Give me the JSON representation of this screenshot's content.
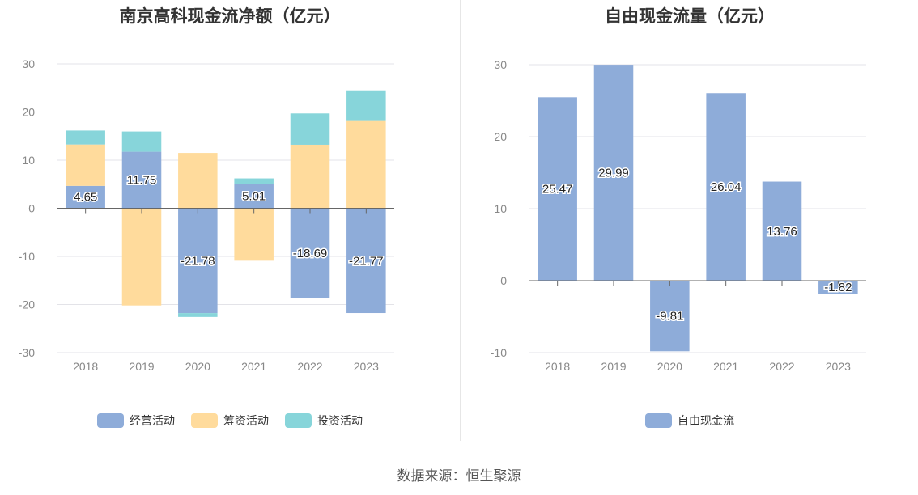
{
  "source_label": "数据来源：恒生聚源",
  "chart_data": [
    {
      "type": "bar",
      "stacked": true,
      "title": "南京高科现金流净额（亿元）",
      "categories": [
        "2018",
        "2019",
        "2020",
        "2021",
        "2022",
        "2023"
      ],
      "series": [
        {
          "name": "经营活动",
          "color": "#8eacd9",
          "values": [
            4.65,
            11.75,
            -21.78,
            5.01,
            -18.69,
            -21.77
          ],
          "labels": [
            "4.65",
            "11.75",
            "-21.78",
            "5.01",
            "-18.69",
            "-21.77"
          ]
        },
        {
          "name": "筹资活动",
          "color": "#ffdb9c",
          "values": [
            8.6,
            -20.2,
            11.5,
            -10.9,
            13.2,
            18.3
          ]
        },
        {
          "name": "投资活动",
          "color": "#87d5da",
          "values": [
            2.9,
            4.2,
            -0.8,
            1.2,
            6.5,
            6.2
          ]
        }
      ],
      "ylim": [
        -30,
        30
      ],
      "yticks": [
        -30,
        -20,
        -10,
        0,
        10,
        20,
        30
      ],
      "legend_position": "bottom",
      "grid": true
    },
    {
      "type": "bar",
      "title": "自由现金流量（亿元）",
      "categories": [
        "2018",
        "2019",
        "2020",
        "2021",
        "2022",
        "2023"
      ],
      "series": [
        {
          "name": "自由现金流",
          "color": "#8eacd9",
          "values": [
            25.47,
            29.99,
            -9.81,
            26.04,
            13.76,
            -1.82
          ],
          "labels": [
            "25.47",
            "29.99",
            "-9.81",
            "26.04",
            "13.76",
            "-1.82"
          ]
        }
      ],
      "ylim": [
        -10,
        30
      ],
      "yticks": [
        -10,
        0,
        10,
        20,
        30
      ],
      "legend_position": "bottom",
      "grid": true
    }
  ]
}
